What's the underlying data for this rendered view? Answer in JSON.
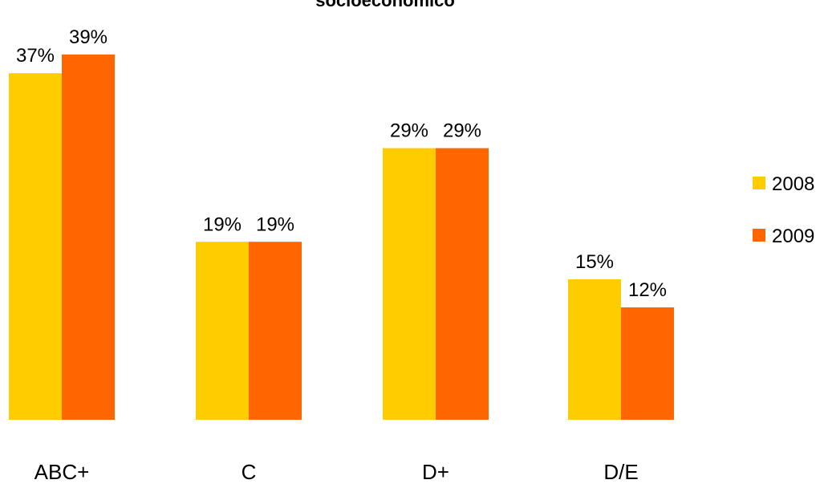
{
  "chart_data": {
    "type": "bar",
    "title": "socioeconómico",
    "categories": [
      "ABC+",
      "C",
      "D+",
      "D/E"
    ],
    "series": [
      {
        "name": "2008",
        "values": [
          37,
          19,
          29,
          15
        ],
        "labels": [
          "37%",
          "19%",
          "29%",
          "15%"
        ],
        "color": "#FFCC00"
      },
      {
        "name": "2009",
        "values": [
          39,
          19,
          29,
          12
        ],
        "labels": [
          "39%",
          "19%",
          "29%",
          "12%"
        ],
        "color": "#FF6600"
      }
    ],
    "ylim": [
      0,
      42
    ],
    "grid": false,
    "legend": "right"
  }
}
